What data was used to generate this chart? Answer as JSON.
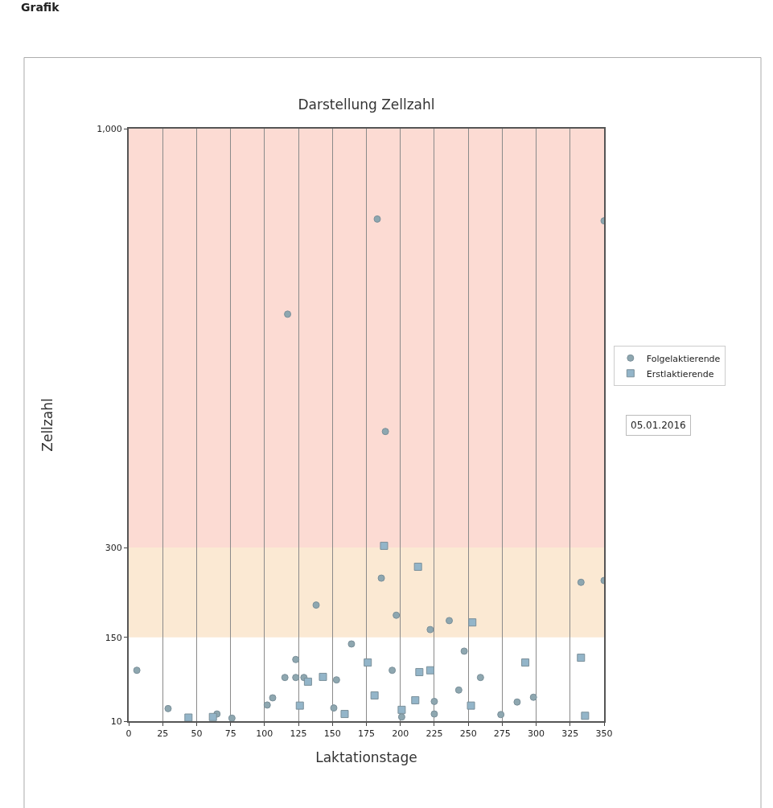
{
  "chart_data": {
    "type": "scatter",
    "title": "Darstellung Zellzahl",
    "xlabel": "Laktationstage",
    "ylabel": "Zellzahl",
    "annotations": [
      "Grafik",
      "05.01.2016"
    ],
    "xlim": [
      0,
      350
    ],
    "xticks": [
      0,
      25,
      50,
      75,
      100,
      125,
      150,
      175,
      200,
      225,
      250,
      275,
      300,
      325,
      350
    ],
    "ylim": [
      10,
      1000
    ],
    "yticks": [
      10,
      150,
      300,
      {
        "value": 1000,
        "label": "1,000"
      }
    ],
    "grid": "x",
    "legend": "right",
    "bands": [
      {
        "axis": "y",
        "from": 150,
        "to": 300,
        "label": null,
        "color": "#fbe9d3"
      },
      {
        "axis": "y",
        "from": 300,
        "to": 1000,
        "label": null,
        "color": "#fcdbd3"
      }
    ],
    "series": [
      {
        "name": "Folgelaktierende",
        "marker": "circle",
        "color": "#8ea7b0",
        "x": [
          6,
          29,
          65,
          76,
          102,
          106,
          115,
          117,
          123,
          123,
          129,
          138,
          151,
          153,
          164,
          183,
          186,
          189,
          194,
          197,
          201,
          222,
          225,
          225,
          236,
          243,
          247,
          259,
          274,
          286,
          298,
          333,
          350,
          350
        ],
        "values": [
          95,
          31,
          22,
          15,
          37,
          49,
          83,
          690,
          113,
          83,
          83,
          204,
          32,
          79,
          139,
          849,
          249,
          494,
          95,
          187,
          17,
          163,
          43,
          22,
          178,
          62,
          127,
          83,
          21,
          42,
          50,
          242,
          245,
          846
        ]
      },
      {
        "name": "Erstlaktierende",
        "marker": "square",
        "color": "#93b5c9",
        "x": [
          44,
          62,
          126,
          132,
          143,
          159,
          176,
          181,
          188,
          201,
          211,
          213,
          214,
          222,
          252,
          253,
          292,
          333,
          336
        ],
        "values": [
          16,
          17,
          36,
          76,
          84,
          22,
          108,
          53,
          303,
          29,
          45,
          268,
          92,
          95,
          36,
          175,
          108,
          116,
          19
        ]
      }
    ]
  }
}
